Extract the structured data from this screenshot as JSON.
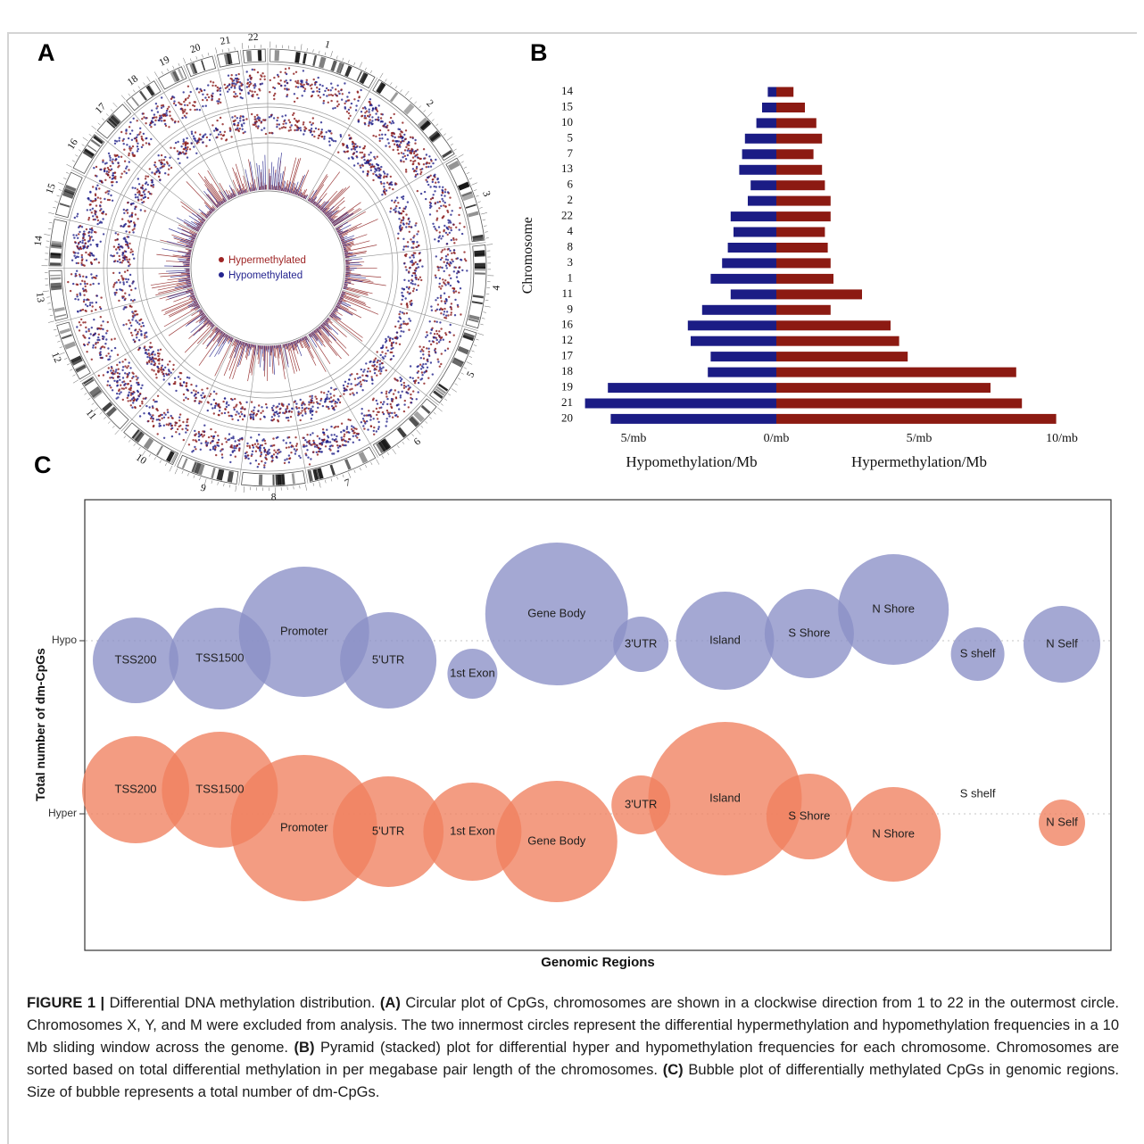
{
  "figure": {
    "panel_a": {
      "label": "A",
      "legend": [
        {
          "label": "Hypermethylated",
          "color": "#9e2424"
        },
        {
          "label": "Hypomethylated",
          "color": "#24248f"
        }
      ]
    },
    "panel_b": {
      "label": "B"
    },
    "panel_c": {
      "label": "C"
    },
    "caption_segments": [
      {
        "text": "FIGURE 1 | ",
        "bold": true
      },
      {
        "text": "Differential DNA methylation distribution. ",
        "bold": false
      },
      {
        "text": "(A)",
        "bold": true
      },
      {
        "text": " Circular plot of CpGs, chromosomes are shown in a clockwise direction from 1 to 22 in the outermost circle. Chromosomes X, Y, and M were excluded from analysis. The two innermost circles represent the differential hypermethylation and hypomethylation frequencies in a 10 Mb sliding window across the genome. ",
        "bold": false
      },
      {
        "text": "(B)",
        "bold": true
      },
      {
        "text": " Pyramid (stacked) plot for differential hyper and hypomethylation frequencies for each chromosome. Chromosomes are sorted based on total differential methylation in per megabase pair length of the chromosomes. ",
        "bold": false
      },
      {
        "text": "(C)",
        "bold": true
      },
      {
        "text": " Bubble plot of differentially methylated CpGs in genomic regions. Size of bubble represents a total number of dm-CpGs.",
        "bold": false
      }
    ]
  },
  "chart_data": [
    {
      "id": "circos",
      "type": "scatter",
      "title": "Circular plot of CpGs (chromosomes 1-22 clockwise, outermost circle)",
      "chromosomes": [
        "1",
        "2",
        "3",
        "4",
        "5",
        "6",
        "7",
        "8",
        "9",
        "10",
        "11",
        "12",
        "13",
        "14",
        "15",
        "16",
        "17",
        "18",
        "19",
        "20",
        "21",
        "22"
      ],
      "chromosome_lengths_mb": [
        249,
        243,
        198,
        191,
        181,
        171,
        159,
        146,
        141,
        134,
        135,
        133,
        115,
        107,
        102,
        90,
        83,
        78,
        59,
        63,
        48,
        51
      ],
      "legend": [
        "Hypermethylated",
        "Hypomethylated"
      ],
      "colors": {
        "hypermethylated": "#8b1a1a",
        "hypomethylated": "#20208a"
      }
    },
    {
      "id": "pyramid",
      "type": "bar",
      "orientation": "horizontal-pyramid",
      "ylabel": "Chromosome",
      "xlabel_left": "Hypomethylation/Mb",
      "xlabel_right": "Hypermethylation/Mb",
      "x_ticks": [
        {
          "value": -5,
          "label": "5/mb"
        },
        {
          "value": 0,
          "label": "0/mb"
        },
        {
          "value": 5,
          "label": "5/mb"
        },
        {
          "value": 10,
          "label": "10/mb"
        }
      ],
      "xlim": [
        -5.5,
        10.5
      ],
      "categories": [
        "14",
        "15",
        "10",
        "5",
        "7",
        "13",
        "6",
        "2",
        "22",
        "4",
        "8",
        "3",
        "1",
        "11",
        "9",
        "16",
        "12",
        "17",
        "18",
        "19",
        "21",
        "20"
      ],
      "series": [
        {
          "name": "Hypomethylation/Mb",
          "direction": "left",
          "color": "#1b1c85",
          "values": [
            0.3,
            0.5,
            0.7,
            1.1,
            1.2,
            1.3,
            0.9,
            1.0,
            1.6,
            1.5,
            1.7,
            1.9,
            2.3,
            1.6,
            2.6,
            3.1,
            3.0,
            2.3,
            2.4,
            5.9,
            6.7,
            5.8
          ]
        },
        {
          "name": "Hypermethylation/Mb",
          "direction": "right",
          "color": "#8c1a12",
          "values": [
            0.6,
            1.0,
            1.4,
            1.6,
            1.3,
            1.6,
            1.7,
            1.9,
            1.9,
            1.7,
            1.8,
            1.9,
            2.0,
            3.0,
            1.9,
            4.0,
            4.3,
            4.6,
            8.4,
            7.5,
            8.6,
            9.8
          ]
        }
      ]
    },
    {
      "id": "bubble",
      "type": "bubble",
      "xlabel": "Genomic Regions",
      "ylabel": "Total number of dm-CpGs",
      "row_labels": [
        "Hypo",
        "Hyper"
      ],
      "categories": [
        "TSS200",
        "TSS1500",
        "Promoter",
        "5'UTR",
        "1st Exon",
        "Gene Body",
        "3'UTR",
        "Island",
        "S Shore",
        "N Shore",
        "S shelf",
        "N Self"
      ],
      "series": [
        {
          "name": "Hypo",
          "color": "#8b90c7",
          "bubbles": [
            {
              "region": "TSS200",
              "r": 48,
              "dy": 22
            },
            {
              "region": "TSS1500",
              "r": 57,
              "dy": 20
            },
            {
              "region": "Promoter",
              "r": 73,
              "dy": -10
            },
            {
              "region": "5'UTR",
              "r": 54,
              "dy": 22
            },
            {
              "region": "1st Exon",
              "r": 28,
              "dy": 37
            },
            {
              "region": "Gene Body",
              "r": 80,
              "dy": -30
            },
            {
              "region": "3'UTR",
              "r": 31,
              "dy": 4
            },
            {
              "region": "Island",
              "r": 55,
              "dy": 0
            },
            {
              "region": "S Shore",
              "r": 50,
              "dy": -8
            },
            {
              "region": "N Shore",
              "r": 62,
              "dy": -35
            },
            {
              "region": "S shelf",
              "r": 30,
              "dy": 15
            },
            {
              "region": "N Self",
              "r": 43,
              "dy": 4
            }
          ]
        },
        {
          "name": "Hyper",
          "color": "#f0805f",
          "bubbles": [
            {
              "region": "TSS200",
              "r": 60,
              "dy": -27
            },
            {
              "region": "TSS1500",
              "r": 65,
              "dy": -27
            },
            {
              "region": "Promoter",
              "r": 82,
              "dy": 16
            },
            {
              "region": "5'UTR",
              "r": 62,
              "dy": 20
            },
            {
              "region": "1st Exon",
              "r": 55,
              "dy": 20
            },
            {
              "region": "Gene Body",
              "r": 68,
              "dy": 31
            },
            {
              "region": "3'UTR",
              "r": 33,
              "dy": -10
            },
            {
              "region": "Island",
              "r": 86,
              "dy": -17
            },
            {
              "region": "S Shore",
              "r": 48,
              "dy": 3
            },
            {
              "region": "N Shore",
              "r": 53,
              "dy": 23
            },
            {
              "region": "S shelf",
              "r": 0,
              "dy": -22
            },
            {
              "region": "N Self",
              "r": 26,
              "dy": 10
            }
          ]
        }
      ]
    }
  ]
}
